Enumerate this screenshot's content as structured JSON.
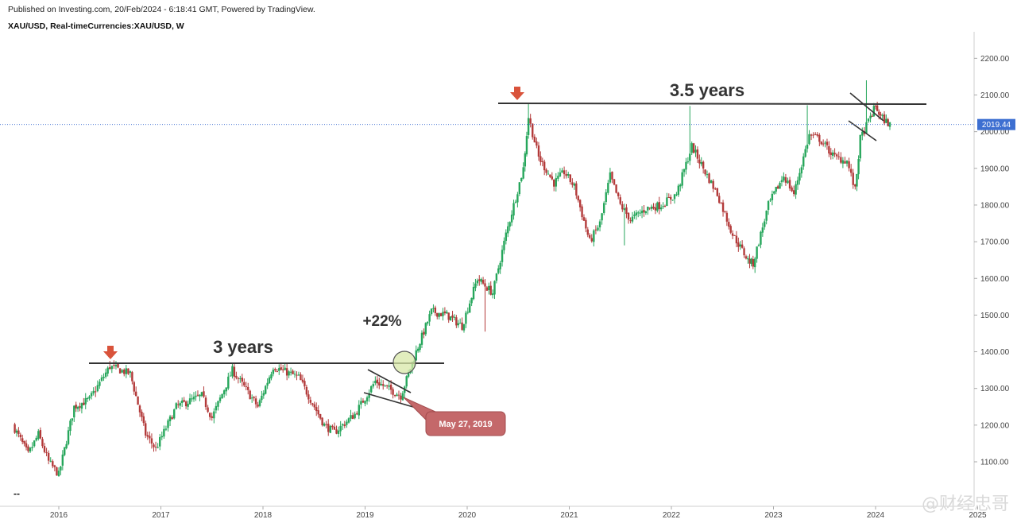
{
  "header": {
    "published": "Published on Investing.com, 20/Feb/2024 - 6:18:41 GMT, Powered by TradingView.",
    "symbol": "XAU/USD, Real-timeCurrencies:XAU/USD, W"
  },
  "watermark": "@财经忠哥",
  "colors": {
    "up": "#26a65b",
    "down": "#b33a3a",
    "line": "#333333",
    "price_tag": "#3d6fd1",
    "callout": "#c4686a",
    "circle": "#d8e8a8"
  },
  "chart_data": {
    "type": "candlestick",
    "title": "XAU/USD, Real-timeCurrencies:XAU/USD, W",
    "x_tick_labels": [
      "2016",
      "2017",
      "2018",
      "2019",
      "2020",
      "2021",
      "2022",
      "2023",
      "2024",
      "2025"
    ],
    "y_tick_labels": [
      "1100.00",
      "1200.00",
      "1300.00",
      "1400.00",
      "1500.00",
      "1600.00",
      "1700.00",
      "1800.00",
      "1900.00",
      "2000.00",
      "2100.00",
      "2200.00"
    ],
    "ylim": [
      1030,
      2250
    ],
    "last_price_label": "2019.44",
    "last_price": 2019.44,
    "anchors": [
      {
        "t": 2015.55,
        "p": 1200
      },
      {
        "t": 2015.7,
        "p": 1120
      },
      {
        "t": 2015.8,
        "p": 1175
      },
      {
        "t": 2015.9,
        "p": 1100
      },
      {
        "t": 2016.0,
        "p": 1065
      },
      {
        "t": 2016.15,
        "p": 1250
      },
      {
        "t": 2016.3,
        "p": 1270
      },
      {
        "t": 2016.5,
        "p": 1360
      },
      {
        "t": 2016.7,
        "p": 1340
      },
      {
        "t": 2016.85,
        "p": 1175
      },
      {
        "t": 2016.95,
        "p": 1135
      },
      {
        "t": 2017.15,
        "p": 1250
      },
      {
        "t": 2017.4,
        "p": 1280
      },
      {
        "t": 2017.5,
        "p": 1220
      },
      {
        "t": 2017.7,
        "p": 1350
      },
      {
        "t": 2017.95,
        "p": 1250
      },
      {
        "t": 2018.1,
        "p": 1360
      },
      {
        "t": 2018.35,
        "p": 1330
      },
      {
        "t": 2018.6,
        "p": 1200
      },
      {
        "t": 2018.7,
        "p": 1180
      },
      {
        "t": 2018.9,
        "p": 1230
      },
      {
        "t": 2019.1,
        "p": 1320
      },
      {
        "t": 2019.35,
        "p": 1280
      },
      {
        "t": 2019.5,
        "p": 1400
      },
      {
        "t": 2019.65,
        "p": 1510
      },
      {
        "t": 2019.8,
        "p": 1500
      },
      {
        "t": 2019.95,
        "p": 1470
      },
      {
        "t": 2020.1,
        "p": 1600
      },
      {
        "t": 2020.25,
        "p": 1560
      },
      {
        "t": 2020.38,
        "p": 1720
      },
      {
        "t": 2020.55,
        "p": 1900
      },
      {
        "t": 2020.6,
        "p": 2040
      },
      {
        "t": 2020.7,
        "p": 1930
      },
      {
        "t": 2020.85,
        "p": 1860
      },
      {
        "t": 2020.95,
        "p": 1890
      },
      {
        "t": 2021.05,
        "p": 1850
      },
      {
        "t": 2021.2,
        "p": 1700
      },
      {
        "t": 2021.3,
        "p": 1750
      },
      {
        "t": 2021.4,
        "p": 1880
      },
      {
        "t": 2021.5,
        "p": 1800
      },
      {
        "t": 2021.6,
        "p": 1760
      },
      {
        "t": 2021.75,
        "p": 1790
      },
      {
        "t": 2021.9,
        "p": 1800
      },
      {
        "t": 2022.05,
        "p": 1830
      },
      {
        "t": 2022.2,
        "p": 1960
      },
      {
        "t": 2022.35,
        "p": 1880
      },
      {
        "t": 2022.45,
        "p": 1830
      },
      {
        "t": 2022.6,
        "p": 1720
      },
      {
        "t": 2022.75,
        "p": 1650
      },
      {
        "t": 2022.8,
        "p": 1640
      },
      {
        "t": 2022.95,
        "p": 1800
      },
      {
        "t": 2023.1,
        "p": 1880
      },
      {
        "t": 2023.2,
        "p": 1830
      },
      {
        "t": 2023.35,
        "p": 1990
      },
      {
        "t": 2023.45,
        "p": 1980
      },
      {
        "t": 2023.6,
        "p": 1930
      },
      {
        "t": 2023.72,
        "p": 1920
      },
      {
        "t": 2023.8,
        "p": 1840
      },
      {
        "t": 2023.85,
        "p": 1980
      },
      {
        "t": 2023.95,
        "p": 2040
      },
      {
        "t": 2024.0,
        "p": 2070
      },
      {
        "t": 2024.05,
        "p": 2040
      },
      {
        "t": 2024.14,
        "p": 2019
      }
    ]
  },
  "annotations": {
    "three_years": "3 years",
    "three_five_years": "3.5 years",
    "pct": "+22%",
    "date_callout": "May 27, 2019",
    "bottom_marker": "--"
  }
}
